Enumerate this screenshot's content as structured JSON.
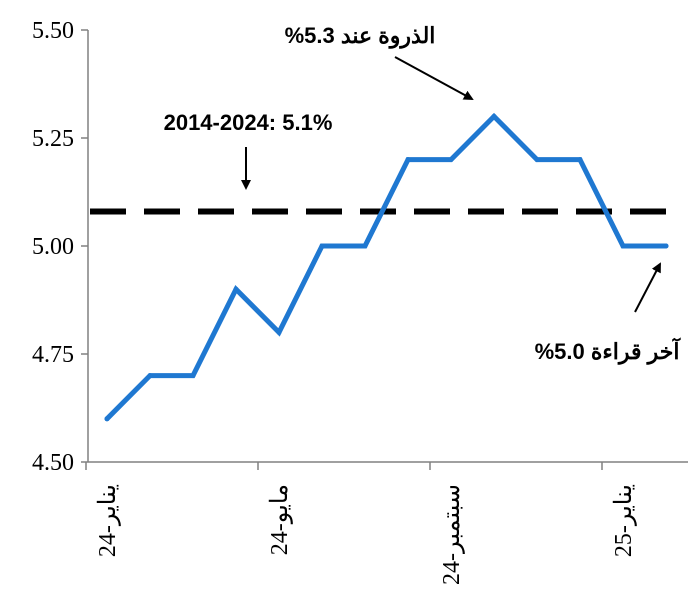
{
  "chart_data": {
    "type": "line",
    "title": "",
    "xlabel": "",
    "ylabel": "",
    "ylim": [
      4.5,
      5.5
    ],
    "yticks": [
      "4.50",
      "4.75",
      "5.00",
      "5.25",
      "5.50"
    ],
    "grid": false,
    "x_tick_labels": [
      "يناير-24",
      "مايو-24",
      "سبتمبر-24",
      "يناير-25"
    ],
    "x_tick_index": [
      0,
      4,
      8,
      12
    ],
    "series": [
      {
        "values": [
          4.6,
          4.7,
          4.7,
          4.9,
          4.8,
          5.0,
          5.0,
          5.2,
          5.2,
          5.3,
          5.2,
          5.2,
          5.0,
          5.0
        ],
        "color": "#1f78d1"
      }
    ],
    "reference_line": {
      "value": 5.08,
      "style": "dashed",
      "color": "#000000"
    },
    "annotations": {
      "peak": "الذروة عند 5.3%",
      "average": "2014-2024: 5.1%",
      "latest": "آخر قراءة 5.0%"
    }
  }
}
